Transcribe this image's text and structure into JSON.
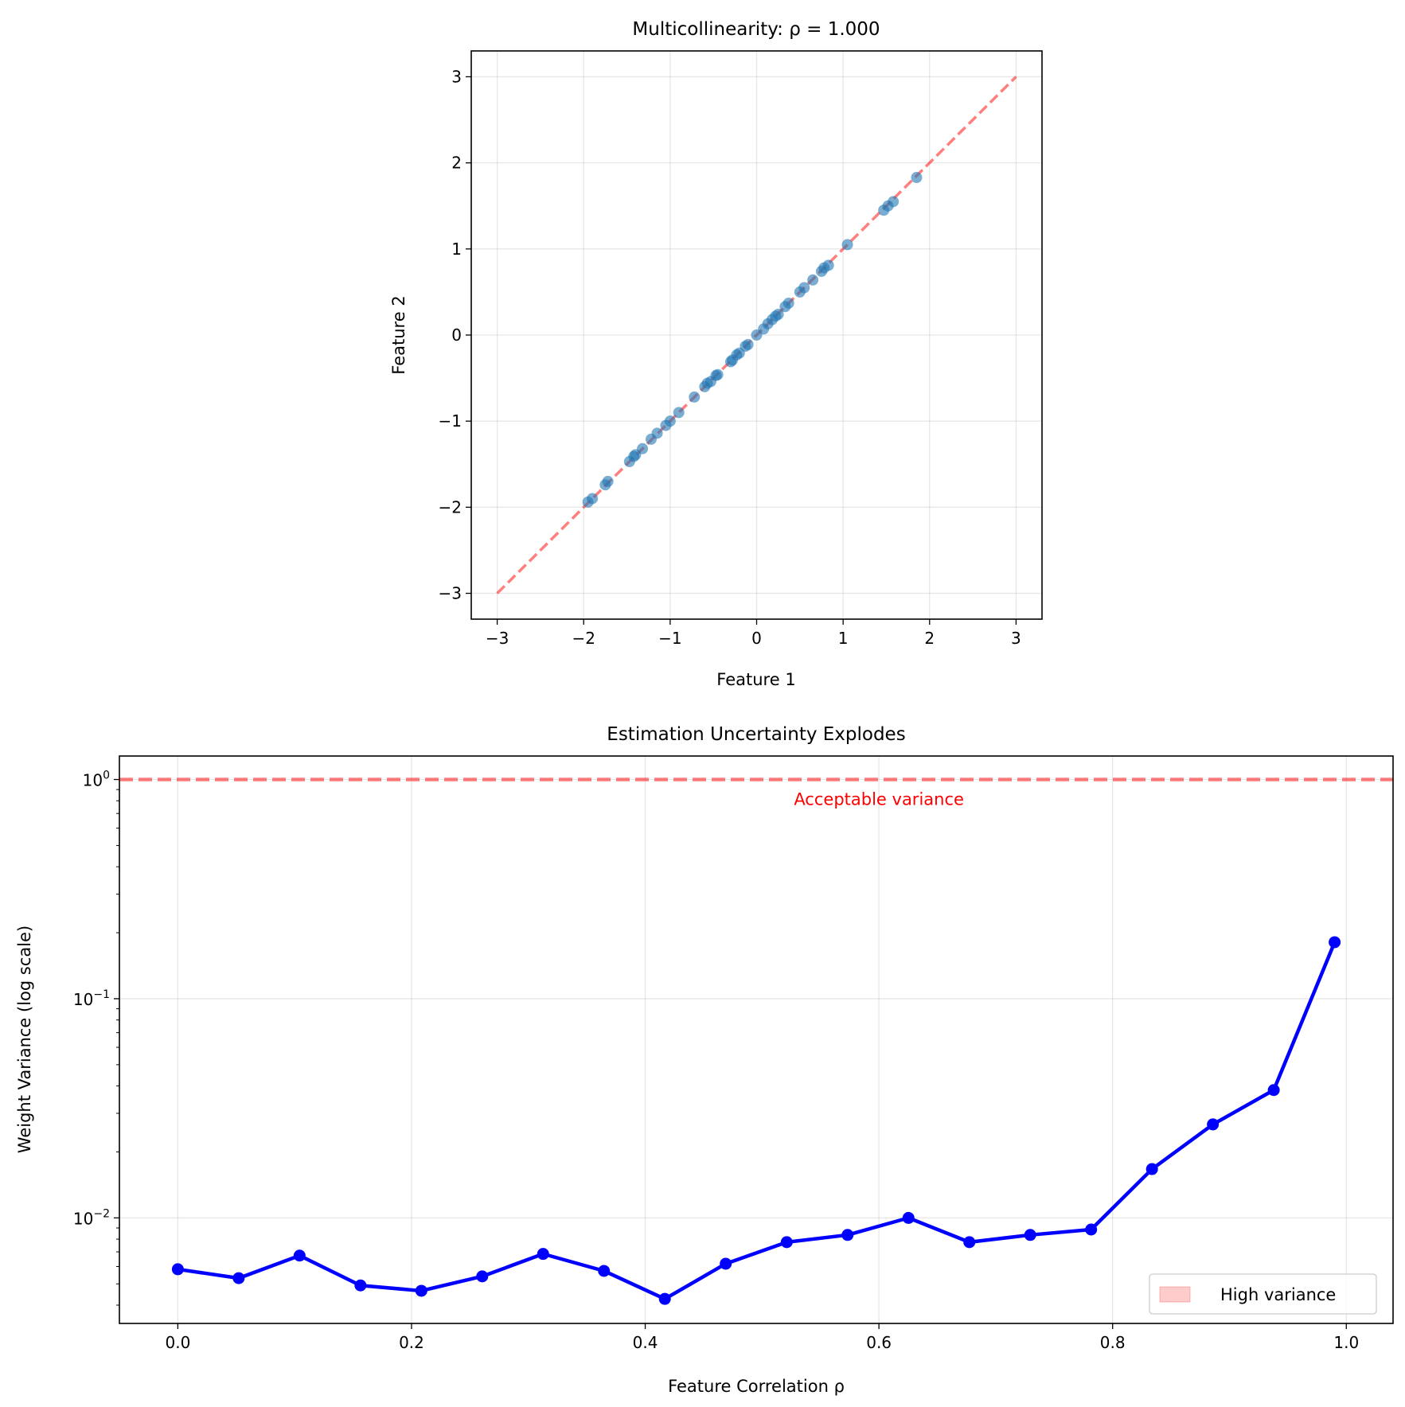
{
  "chart_data": [
    {
      "type": "scatter",
      "title": "Multicollinearity: ρ = 1.000",
      "xlabel": "Feature 1",
      "ylabel": "Feature 2",
      "xlim": [
        -3.3,
        3.3
      ],
      "ylim": [
        -3.3,
        3.3
      ],
      "xticks": [
        -3,
        -2,
        -1,
        0,
        1,
        2,
        3
      ],
      "yticks": [
        -3,
        -2,
        -1,
        0,
        1,
        2,
        3
      ],
      "xtick_labels": [
        "−3",
        "−2",
        "−1",
        "0",
        "1",
        "2",
        "3"
      ],
      "ytick_labels": [
        "−3",
        "−2",
        "−1",
        "0",
        "1",
        "2",
        "3"
      ],
      "grid": true,
      "point_color": "#1f77b4",
      "reference_line": {
        "x": [
          -3,
          3
        ],
        "y": [
          -3,
          3
        ],
        "color": "#ff0000",
        "style": "dashed"
      },
      "x": [
        -1.95,
        -1.9,
        -1.75,
        -1.72,
        -1.47,
        -1.42,
        -1.4,
        -1.32,
        -1.22,
        -1.15,
        -1.05,
        -1.0,
        -0.9,
        -0.72,
        -0.6,
        -0.57,
        -0.53,
        -0.47,
        -0.45,
        -0.3,
        -0.28,
        -0.23,
        -0.2,
        -0.13,
        -0.1,
        0.0,
        0.08,
        0.13,
        0.18,
        0.22,
        0.25,
        0.33,
        0.37,
        0.5,
        0.55,
        0.65,
        0.75,
        0.78,
        0.83,
        1.05,
        1.47,
        1.52,
        1.58,
        1.85
      ],
      "y": [
        -1.94,
        -1.9,
        -1.74,
        -1.7,
        -1.47,
        -1.41,
        -1.39,
        -1.32,
        -1.21,
        -1.14,
        -1.05,
        -1.0,
        -0.9,
        -0.72,
        -0.6,
        -0.56,
        -0.54,
        -0.47,
        -0.46,
        -0.31,
        -0.29,
        -0.23,
        -0.21,
        -0.13,
        -0.11,
        0.0,
        0.07,
        0.13,
        0.18,
        0.22,
        0.24,
        0.33,
        0.37,
        0.5,
        0.55,
        0.64,
        0.74,
        0.78,
        0.81,
        1.05,
        1.45,
        1.5,
        1.55,
        1.83
      ]
    },
    {
      "type": "line",
      "title": "Estimation Uncertainty Explodes",
      "xlabel": "Feature Correlation ρ",
      "ylabel": "Weight Variance (log scale)",
      "yscale": "log",
      "xlim": [
        -0.05,
        1.04
      ],
      "ylim": [
        0.0033,
        1.28
      ],
      "xticks": [
        0.0,
        0.2,
        0.4,
        0.6,
        0.8,
        1.0
      ],
      "xtick_labels": [
        "0.0",
        "0.2",
        "0.4",
        "0.6",
        "0.8",
        "1.0"
      ],
      "yticks": [
        0.01,
        0.1,
        1
      ],
      "ytick_labels": [
        {
          "base": "10",
          "exp": "−2"
        },
        {
          "base": "10",
          "exp": "−1"
        },
        {
          "base": "10",
          "exp": "0"
        }
      ],
      "grid": true,
      "series": [
        {
          "name": "Weight variance",
          "color": "#0000ff",
          "x": [
            0.0,
            0.0521,
            0.1042,
            0.1563,
            0.2084,
            0.2605,
            0.3126,
            0.3647,
            0.4168,
            0.4689,
            0.5211,
            0.5732,
            0.6253,
            0.6774,
            0.7295,
            0.7816,
            0.8337,
            0.8858,
            0.9379,
            0.99
          ],
          "values": [
            0.00583,
            0.00531,
            0.00673,
            0.00492,
            0.00465,
            0.00541,
            0.00685,
            0.00573,
            0.00427,
            0.00618,
            0.00775,
            0.00836,
            0.01,
            0.00775,
            0.00836,
            0.00885,
            0.0167,
            0.0267,
            0.0383,
            0.181
          ]
        }
      ],
      "threshold_line": {
        "y": 1.0,
        "color": "#ff0000",
        "style": "dashed"
      },
      "annotation": {
        "text": "Acceptable variance",
        "x": 0.6,
        "y": 1.5,
        "color": "#ff0000"
      },
      "legend": {
        "entries": [
          {
            "label": "High variance",
            "color": "#ff0000"
          }
        ],
        "placement": "lower-right"
      }
    }
  ]
}
